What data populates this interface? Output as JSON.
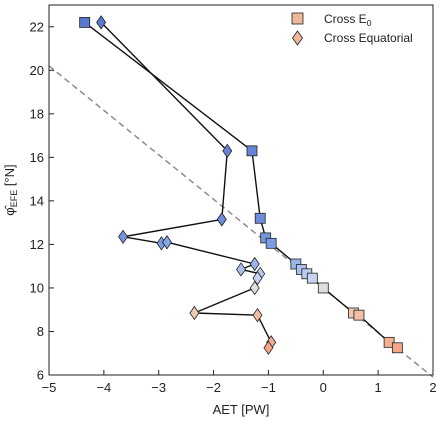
{
  "chart_data": {
    "type": "scatter",
    "xlabel": "AET [PW]",
    "ylabel": "φ̂EFE [°N]",
    "ylabel_main": "φ̂",
    "ylabel_sub": "EFE",
    "ylabel_unit": " [°N]",
    "xlim": [
      -5,
      2
    ],
    "ylim": [
      6,
      23
    ],
    "xticks": [
      -5,
      -4,
      -3,
      -2,
      -1,
      0,
      1,
      2
    ],
    "yticks": [
      6,
      8,
      10,
      12,
      14,
      16,
      18,
      20,
      22
    ],
    "grid": false,
    "legend_position": "top-right",
    "reference_line": {
      "style": "dashed",
      "color": "#8c8c8c",
      "points": [
        [
          -5,
          20.2
        ],
        [
          2,
          5.9
        ]
      ]
    },
    "series": [
      {
        "name": "Cross E₀",
        "name_main": "Cross E",
        "name_sub": "0",
        "marker": "square",
        "legend_color": "#f0b89b",
        "points": [
          {
            "x": -4.35,
            "y": 22.2,
            "color": "#5b79cf"
          },
          {
            "x": -1.3,
            "y": 16.3,
            "color": "#6683d6"
          },
          {
            "x": -1.15,
            "y": 13.2,
            "color": "#6e8ddb"
          },
          {
            "x": -1.05,
            "y": 12.3,
            "color": "#7596df"
          },
          {
            "x": -0.95,
            "y": 12.05,
            "color": "#7c9de2"
          },
          {
            "x": -0.5,
            "y": 11.1,
            "color": "#9bb5e8"
          },
          {
            "x": -0.4,
            "y": 10.85,
            "color": "#a9c0ec"
          },
          {
            "x": -0.3,
            "y": 10.65,
            "color": "#b8ccef"
          },
          {
            "x": -0.2,
            "y": 10.45,
            "color": "#c7d4ef"
          },
          {
            "x": 0.0,
            "y": 10.0,
            "color": "#dfdfdf"
          },
          {
            "x": 0.55,
            "y": 8.85,
            "color": "#f0c8b0"
          },
          {
            "x": 0.65,
            "y": 8.75,
            "color": "#f2bea4"
          },
          {
            "x": 1.2,
            "y": 7.5,
            "color": "#f4ae92"
          },
          {
            "x": 1.35,
            "y": 7.25,
            "color": "#f4a588"
          }
        ]
      },
      {
        "name": "Cross Equatorial",
        "marker": "diamond",
        "legend_color": "#f0b89b",
        "points": [
          {
            "x": -4.05,
            "y": 22.2,
            "color": "#5b79cf"
          },
          {
            "x": -1.75,
            "y": 16.3,
            "color": "#6683d6"
          },
          {
            "x": -1.85,
            "y": 13.15,
            "color": "#6e8ddb"
          },
          {
            "x": -3.65,
            "y": 12.35,
            "color": "#7596df"
          },
          {
            "x": -2.95,
            "y": 12.05,
            "color": "#7c9de2"
          },
          {
            "x": -2.85,
            "y": 12.1,
            "color": "#86a5e5"
          },
          {
            "x": -1.25,
            "y": 11.1,
            "color": "#9bb5e8"
          },
          {
            "x": -1.5,
            "y": 10.85,
            "color": "#a9c0ec"
          },
          {
            "x": -1.15,
            "y": 10.65,
            "color": "#b8ccef"
          },
          {
            "x": -1.2,
            "y": 10.45,
            "color": "#c7d4ef"
          },
          {
            "x": -1.25,
            "y": 10.0,
            "color": "#dfdfdf"
          },
          {
            "x": -2.35,
            "y": 8.85,
            "color": "#f0c8b0"
          },
          {
            "x": -1.2,
            "y": 8.75,
            "color": "#f2bea4"
          },
          {
            "x": -0.95,
            "y": 7.5,
            "color": "#f4ae92"
          },
          {
            "x": -1.0,
            "y": 7.25,
            "color": "#f4a588"
          }
        ]
      }
    ],
    "pairs": [
      [
        0,
        0
      ],
      [
        1,
        1
      ],
      [
        2,
        2
      ],
      [
        3,
        3
      ],
      [
        4,
        4
      ],
      [
        5,
        5
      ],
      [
        6,
        6
      ],
      [
        7,
        7
      ],
      [
        8,
        8
      ],
      [
        9,
        9
      ],
      [
        10,
        10
      ],
      [
        11,
        11
      ],
      [
        12,
        12
      ],
      [
        13,
        13
      ]
    ]
  }
}
